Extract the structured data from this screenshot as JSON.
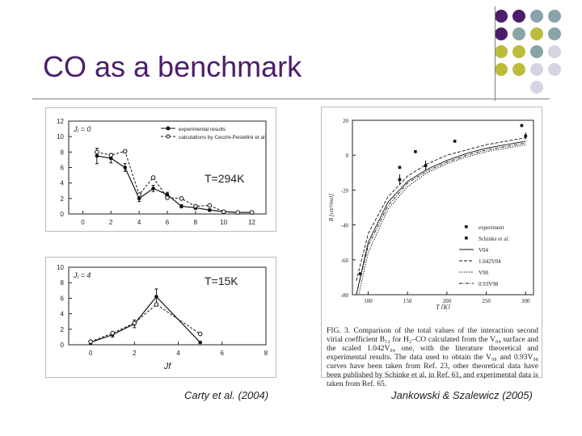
{
  "slide": {
    "title": "CO as a benchmark",
    "credit_left": "Carty et al. (2004)",
    "credit_right": "Jankowski & Szalewicz (2005)"
  },
  "colors": {
    "purple": "#4b1d6b",
    "teal": "#88a4a8",
    "olive": "#bcbc3c",
    "lavender": "#d6d4e2"
  },
  "corner_dots": [
    [
      "purple",
      "purple",
      "teal",
      "teal"
    ],
    [
      "purple",
      "teal",
      "olive",
      "teal"
    ],
    [
      "olive",
      "olive",
      "teal",
      "lavender"
    ],
    [
      "olive",
      "olive",
      "lavender",
      "lavender"
    ],
    [
      "",
      "",
      "lavender",
      ""
    ]
  ],
  "chart_data": [
    {
      "type": "line",
      "panel": "top-left",
      "label": "Jⱼ = 0",
      "annotation": "T=294K",
      "xlim": [
        -1,
        13
      ],
      "ylim": [
        0,
        12
      ],
      "xticks": [
        0,
        2,
        4,
        6,
        8,
        10,
        12
      ],
      "yticks": [
        0,
        2,
        4,
        6,
        8,
        10,
        12
      ],
      "legend": [
        "experimental results",
        "calculations by Cecchi-Pestellini et al."
      ],
      "series": [
        {
          "name": "experimental results",
          "x": [
            1,
            2,
            3,
            4,
            5,
            6,
            7,
            8,
            9,
            10,
            11,
            12
          ],
          "y": [
            7.5,
            7.2,
            6.0,
            2.0,
            3.3,
            2.5,
            1.0,
            0.8,
            0.5,
            0.3,
            0.2,
            0.2
          ],
          "err": [
            1.0,
            0.6,
            0.5,
            0.4,
            0.4,
            0.3,
            0.2,
            0.2,
            0.15,
            0.1,
            0.1,
            0.1
          ]
        },
        {
          "name": "calculations",
          "x": [
            1,
            2,
            3,
            4,
            5,
            6,
            7,
            8,
            9,
            10,
            11,
            12
          ],
          "y": [
            8.0,
            7.6,
            8.1,
            2.5,
            4.7,
            2.1,
            2.0,
            1.0,
            1.1,
            0.3,
            0.2,
            0.2
          ]
        }
      ]
    },
    {
      "type": "line",
      "panel": "bottom-left",
      "label": "Jⱼ = 4",
      "annotation": "T=15K",
      "xlabel": "Jf",
      "xlim": [
        -1,
        8
      ],
      "ylim": [
        0,
        10
      ],
      "xticks": [
        0,
        2,
        4,
        6,
        8
      ],
      "yticks": [
        0,
        2,
        4,
        6,
        8,
        10
      ],
      "series": [
        {
          "name": "experimental results",
          "x": [
            0,
            1,
            2,
            3,
            5
          ],
          "y": [
            0.3,
            1.3,
            2.7,
            6.2,
            0.3
          ],
          "err": [
            0.2,
            0.3,
            0.5,
            1.0,
            0.1
          ]
        },
        {
          "name": "calculations",
          "x": [
            0,
            1,
            2,
            3,
            5
          ],
          "y": [
            0.4,
            1.5,
            2.8,
            5.2,
            1.4
          ]
        }
      ]
    },
    {
      "type": "line",
      "panel": "right",
      "xlabel": "T [K]",
      "ylabel": "B [cm³/mol]",
      "xlim": [
        80,
        310
      ],
      "ylim": [
        -80,
        20
      ],
      "xticks": [
        100,
        150,
        200,
        250,
        300
      ],
      "yticks": [
        20,
        0,
        -20,
        -40,
        -60,
        -80
      ],
      "legend": [
        "experiment",
        "Schinke et al.",
        "V04",
        "1.042V04",
        "V98",
        "0.93V98"
      ],
      "series": [
        {
          "name": "experiment",
          "x": [
            140,
            173,
            300
          ],
          "y": [
            -14,
            -6,
            11
          ],
          "err": [
            3,
            3,
            2
          ]
        },
        {
          "name": "Schinke et al.",
          "x": [
            90,
            140,
            160,
            210,
            295
          ],
          "y": [
            -68,
            -7,
            2,
            8,
            17
          ]
        },
        {
          "name": "V04",
          "x": [
            85,
            100,
            125,
            150,
            175,
            200,
            225,
            250,
            275,
            300
          ],
          "y": [
            -80,
            -50,
            -27,
            -15,
            -8,
            -3,
            1,
            4,
            6,
            8
          ]
        },
        {
          "name": "1.042V04",
          "x": [
            85,
            100,
            125,
            150,
            175,
            200,
            225,
            250,
            275,
            300
          ],
          "y": [
            -72,
            -45,
            -24,
            -12,
            -5,
            0,
            3,
            6,
            8,
            10
          ]
        },
        {
          "name": "V98",
          "x": [
            85,
            100,
            125,
            150,
            175,
            200,
            225,
            250,
            275,
            300
          ],
          "y": [
            -86,
            -56,
            -31,
            -18,
            -10,
            -5,
            -1,
            2,
            4,
            6
          ]
        },
        {
          "name": "0.93V98",
          "x": [
            85,
            100,
            125,
            150,
            175,
            200,
            225,
            250,
            275,
            300
          ],
          "y": [
            -80,
            -52,
            -29,
            -16,
            -9,
            -4,
            0,
            3,
            5,
            7
          ]
        }
      ]
    }
  ],
  "figure_caption": "FIG. 3. Comparison of the total values of the interaction second virial coefficient B₁₂ for H₂–CO calculated from the V₀₄ surface and the scaled 1.042V₀₄ one, with the literature theoretical and experimental results. The data used to obtain the V₉₈ and 0.93V₉₈ curves have been taken from Ref. 23, other theoretical data have been published by Schinke et al. in Ref. 61, and experimental data is taken from Ref. 65."
}
